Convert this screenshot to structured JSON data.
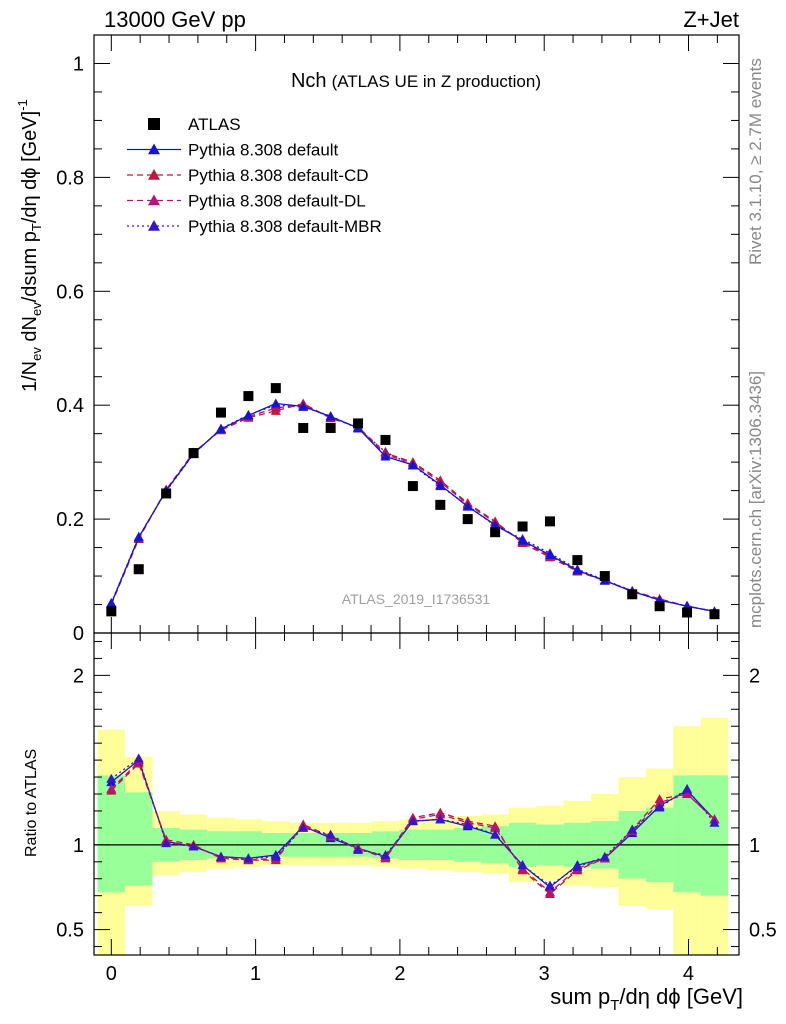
{
  "header": {
    "energy_label": "13000 GeV pp",
    "process_label": "Z+Jet"
  },
  "side_labels": {
    "rivet": "Rivet 3.1.10, ≥ 2.7M events",
    "mcplots": "mcplots.cern.ch [arXiv:1306.3436]"
  },
  "chart_data": [
    {
      "panel": "main",
      "type": "scatter",
      "title": "Nch",
      "subtitle": "(ATLAS UE in Z production)",
      "watermark": "ATLAS_2019_I1736531",
      "ylabel": "1/N_ev dN_ev/dsum p_T/dη dϕ [GeV]^-1",
      "xlim": [
        -0.12,
        4.35
      ],
      "ylim": [
        0,
        1.05
      ],
      "yticks": [
        "0",
        "0.2",
        "0.4",
        "0.6",
        "0.8",
        "1"
      ],
      "grid": false,
      "legend_position": "top-left",
      "x": [
        0.0,
        0.19,
        0.38,
        0.57,
        0.76,
        0.95,
        1.14,
        1.33,
        1.52,
        1.71,
        1.9,
        2.09,
        2.28,
        2.47,
        2.66,
        2.85,
        3.04,
        3.23,
        3.42,
        3.61,
        3.8,
        3.99,
        4.18
      ],
      "series": [
        {
          "name": "ATLAS",
          "color": "#000000",
          "marker": "square",
          "line": "none",
          "values": [
            0.038,
            0.112,
            0.245,
            0.316,
            0.387,
            0.416,
            0.43,
            0.36,
            0.36,
            0.368,
            0.339,
            0.258,
            0.225,
            0.2,
            0.177,
            0.187,
            0.196,
            0.128,
            0.1,
            0.068,
            0.047,
            0.036,
            0.033
          ]
        },
        {
          "name": "Pythia 8.308 default",
          "color": "#1414d6",
          "marker": "triangle",
          "line": "solid",
          "values": [
            0.052,
            0.168,
            0.25,
            0.315,
            0.358,
            0.382,
            0.403,
            0.398,
            0.38,
            0.36,
            0.31,
            0.295,
            0.26,
            0.222,
            0.19,
            0.162,
            0.137,
            0.11,
            0.092,
            0.073,
            0.058,
            0.047,
            0.038
          ]
        },
        {
          "name": "Pythia 8.308 default-CD",
          "color": "#c8143c",
          "marker": "triangle",
          "line": "dashed",
          "values": [
            0.05,
            0.165,
            0.252,
            0.317,
            0.356,
            0.378,
            0.39,
            0.403,
            0.377,
            0.362,
            0.316,
            0.3,
            0.268,
            0.228,
            0.196,
            0.158,
            0.133,
            0.108,
            0.092,
            0.074,
            0.06,
            0.047,
            0.038
          ]
        },
        {
          "name": "Pythia 8.308 default-DL",
          "color": "#b4147a",
          "marker": "triangle",
          "line": "dashed",
          "values": [
            0.051,
            0.166,
            0.251,
            0.316,
            0.357,
            0.38,
            0.395,
            0.401,
            0.378,
            0.361,
            0.313,
            0.298,
            0.265,
            0.226,
            0.194,
            0.16,
            0.135,
            0.109,
            0.092,
            0.073,
            0.059,
            0.047,
            0.038
          ]
        },
        {
          "name": "Pythia 8.308 default-MBR",
          "color": "#3a14c8",
          "marker": "triangle",
          "line": "dotted",
          "values": [
            0.053,
            0.169,
            0.249,
            0.314,
            0.359,
            0.383,
            0.4,
            0.397,
            0.381,
            0.359,
            0.318,
            0.294,
            0.258,
            0.224,
            0.188,
            0.165,
            0.14,
            0.112,
            0.093,
            0.074,
            0.057,
            0.048,
            0.037
          ]
        }
      ]
    },
    {
      "panel": "ratio",
      "type": "line",
      "ylabel": "Ratio to ATLAS",
      "xlabel": "sum p_T/dη dϕ [GeV]",
      "xlim": [
        -0.12,
        4.35
      ],
      "ylim": [
        0.35,
        2.25
      ],
      "yticks": [
        "0.5",
        "1",
        "2"
      ],
      "xticks": [
        "0",
        "1",
        "2",
        "3",
        "4"
      ],
      "reference_line": 1,
      "x": [
        0.0,
        0.19,
        0.38,
        0.57,
        0.76,
        0.95,
        1.14,
        1.33,
        1.52,
        1.71,
        1.9,
        2.09,
        2.28,
        2.47,
        2.66,
        2.85,
        3.04,
        3.23,
        3.42,
        3.61,
        3.8,
        3.99,
        4.18
      ],
      "bands": {
        "yellow_color": "#ffff99",
        "green_color": "#99ff99",
        "yellow_low": [
          0.35,
          0.64,
          0.82,
          0.84,
          0.86,
          0.87,
          0.88,
          0.88,
          0.88,
          0.88,
          0.87,
          0.86,
          0.85,
          0.84,
          0.83,
          0.78,
          0.79,
          0.76,
          0.75,
          0.64,
          0.62,
          0.35,
          0.35
        ],
        "yellow_high": [
          1.68,
          1.52,
          1.2,
          1.18,
          1.16,
          1.15,
          1.14,
          1.13,
          1.13,
          1.13,
          1.14,
          1.15,
          1.16,
          1.17,
          1.18,
          1.22,
          1.23,
          1.26,
          1.3,
          1.4,
          1.45,
          1.7,
          1.75
        ],
        "green_low": [
          0.72,
          0.76,
          0.9,
          0.91,
          0.92,
          0.92,
          0.93,
          0.93,
          0.93,
          0.93,
          0.92,
          0.91,
          0.91,
          0.9,
          0.89,
          0.87,
          0.88,
          0.87,
          0.86,
          0.8,
          0.78,
          0.72,
          0.7
        ],
        "green_high": [
          1.41,
          1.31,
          1.1,
          1.09,
          1.08,
          1.08,
          1.07,
          1.07,
          1.07,
          1.07,
          1.08,
          1.09,
          1.09,
          1.1,
          1.11,
          1.13,
          1.12,
          1.13,
          1.14,
          1.2,
          1.22,
          1.41,
          1.41
        ]
      },
      "series": [
        {
          "name": "Pythia 8.308 default",
          "color": "#1414d6",
          "line": "solid",
          "values": [
            1.37,
            1.5,
            1.02,
            0.99,
            0.93,
            0.92,
            0.94,
            1.11,
            1.04,
            0.98,
            0.93,
            1.14,
            1.15,
            1.11,
            1.06,
            0.88,
            0.75,
            0.88,
            0.92,
            1.07,
            1.23,
            1.32,
            1.15
          ]
        },
        {
          "name": "Pythia 8.308 default-CD",
          "color": "#c8143c",
          "line": "dashed",
          "values": [
            1.32,
            1.48,
            1.03,
            1.0,
            0.92,
            0.91,
            0.91,
            1.12,
            1.05,
            0.98,
            0.93,
            1.16,
            1.19,
            1.14,
            1.11,
            0.85,
            0.71,
            0.85,
            0.92,
            1.09,
            1.27,
            1.3,
            1.15
          ]
        },
        {
          "name": "Pythia 8.308 default-DL",
          "color": "#b4147a",
          "line": "dashed",
          "values": [
            1.33,
            1.49,
            1.02,
            0.99,
            0.93,
            0.91,
            0.92,
            1.11,
            1.05,
            0.98,
            0.92,
            1.15,
            1.18,
            1.13,
            1.1,
            0.86,
            0.72,
            0.86,
            0.92,
            1.08,
            1.25,
            1.3,
            1.15
          ]
        },
        {
          "name": "Pythia 8.308 default-MBR",
          "color": "#3a14c8",
          "line": "dotted",
          "values": [
            1.39,
            1.51,
            1.01,
            0.99,
            0.93,
            0.92,
            0.93,
            1.1,
            1.06,
            0.97,
            0.94,
            1.14,
            1.15,
            1.12,
            1.06,
            0.88,
            0.76,
            0.87,
            0.93,
            1.09,
            1.22,
            1.33,
            1.13
          ]
        }
      ]
    }
  ]
}
